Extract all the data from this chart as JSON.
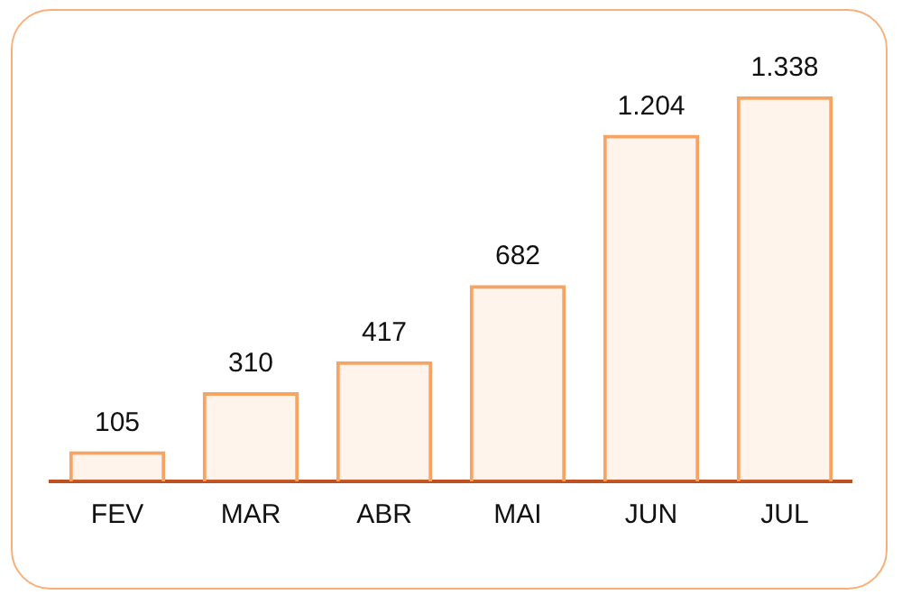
{
  "chart_data": {
    "type": "bar",
    "categories": [
      "FEV",
      "MAR",
      "ABR",
      "MAI",
      "JUN",
      "JUL"
    ],
    "values": [
      105,
      310,
      417,
      682,
      1204,
      1338
    ],
    "value_labels": [
      "105",
      "310",
      "417",
      "682",
      "1.204",
      "1.338"
    ],
    "color": "#f7a463",
    "tick_labels": "x",
    "legend": false
  }
}
